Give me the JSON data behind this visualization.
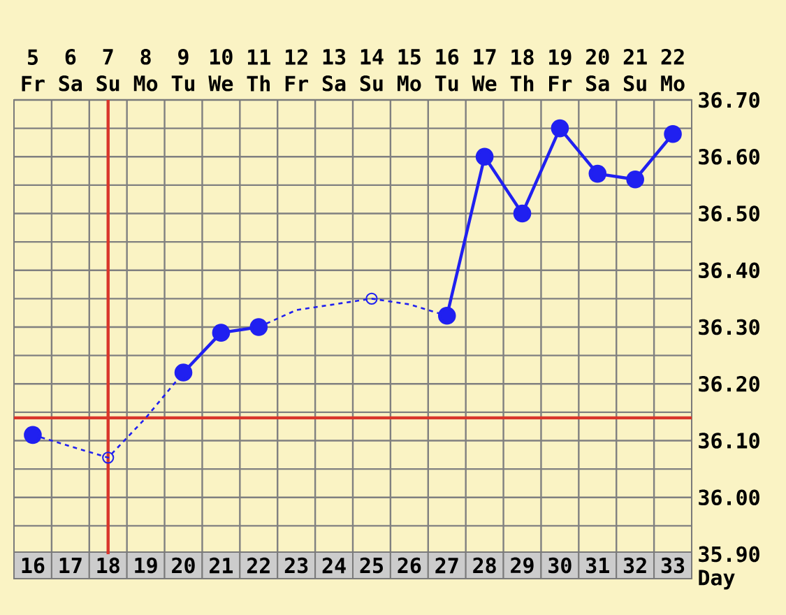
{
  "chart_data": {
    "type": "line",
    "xlabel": "Day",
    "xlim": [
      15.5,
      33.5
    ],
    "xticks": [
      16,
      17,
      18,
      19,
      20,
      21,
      22,
      23,
      24,
      25,
      26,
      27,
      28,
      29,
      30,
      31,
      32,
      33
    ],
    "x2lim": [
      4.5,
      22.5
    ],
    "x2ticks": [
      {
        "value": 5,
        "label": "5 Fr"
      },
      {
        "value": 6,
        "label": "6 Sa"
      },
      {
        "value": 7,
        "label": "7 Su"
      },
      {
        "value": 8,
        "label": "8 Mo"
      },
      {
        "value": 9,
        "label": "9 Tu"
      },
      {
        "value": 10,
        "label": "10 We"
      },
      {
        "value": 11,
        "label": "11 Th"
      },
      {
        "value": 12,
        "label": "12 Fr"
      },
      {
        "value": 13,
        "label": "13 Sa"
      },
      {
        "value": 14,
        "label": "14 Su"
      },
      {
        "value": 15,
        "label": "15 Mo"
      },
      {
        "value": 16,
        "label": "16 Tu"
      },
      {
        "value": 17,
        "label": "17 We"
      },
      {
        "value": 18,
        "label": "18 Th"
      },
      {
        "value": 19,
        "label": "19 Fr"
      },
      {
        "value": 20,
        "label": "20 Sa"
      },
      {
        "value": 21,
        "label": "21 Su"
      },
      {
        "value": 22,
        "label": "22 Mo"
      }
    ],
    "ylim": [
      35.9,
      36.7
    ],
    "yticks": [
      {
        "value": 35.9,
        "label": "35.90"
      },
      {
        "value": 36.0,
        "label": "36.00"
      },
      {
        "value": 36.1,
        "label": "36.10"
      },
      {
        "value": 36.2,
        "label": "36.20"
      },
      {
        "value": 36.3,
        "label": "36.30"
      },
      {
        "value": 36.4,
        "label": "36.40"
      },
      {
        "value": 36.5,
        "label": "36.50"
      },
      {
        "value": 36.6,
        "label": "36.60"
      },
      {
        "value": 36.7,
        "label": "36.70"
      }
    ],
    "grid": true,
    "series": [
      {
        "line_style": "dashed",
        "marker": "none",
        "color": "#2020f0",
        "x": [
          16,
          17,
          18,
          19,
          20
        ],
        "values": [
          36.11,
          36.09,
          36.07,
          36.14,
          36.22
        ]
      },
      {
        "line_style": "dashed",
        "marker": "none",
        "color": "#2020f0",
        "x": [
          22,
          23,
          24,
          25,
          26,
          27
        ],
        "values": [
          36.3,
          36.33,
          36.34,
          36.35,
          36.34,
          36.32
        ]
      },
      {
        "line_style": "solid",
        "marker": "circle",
        "color": "#2020f0",
        "x": [
          16,
          17,
          18,
          19,
          20,
          21,
          22,
          23,
          24,
          25,
          26,
          27,
          28,
          29,
          30,
          31,
          32,
          33
        ],
        "values": [
          36.11,
          null,
          null,
          null,
          36.22,
          36.29,
          36.3,
          null,
          null,
          null,
          null,
          36.32,
          36.6,
          36.5,
          36.65,
          36.57,
          36.56,
          36.64
        ]
      },
      {
        "type": "scatter",
        "marker": "circle",
        "color": "#2020f0",
        "x": [
          18,
          25
        ],
        "values": [
          36.07,
          36.35
        ]
      }
    ],
    "ref_lines": [
      {
        "axis": "x",
        "value": 18,
        "color": "#d9362b"
      },
      {
        "axis": "y",
        "value": 36.14,
        "color": "#d9362b"
      }
    ]
  }
}
